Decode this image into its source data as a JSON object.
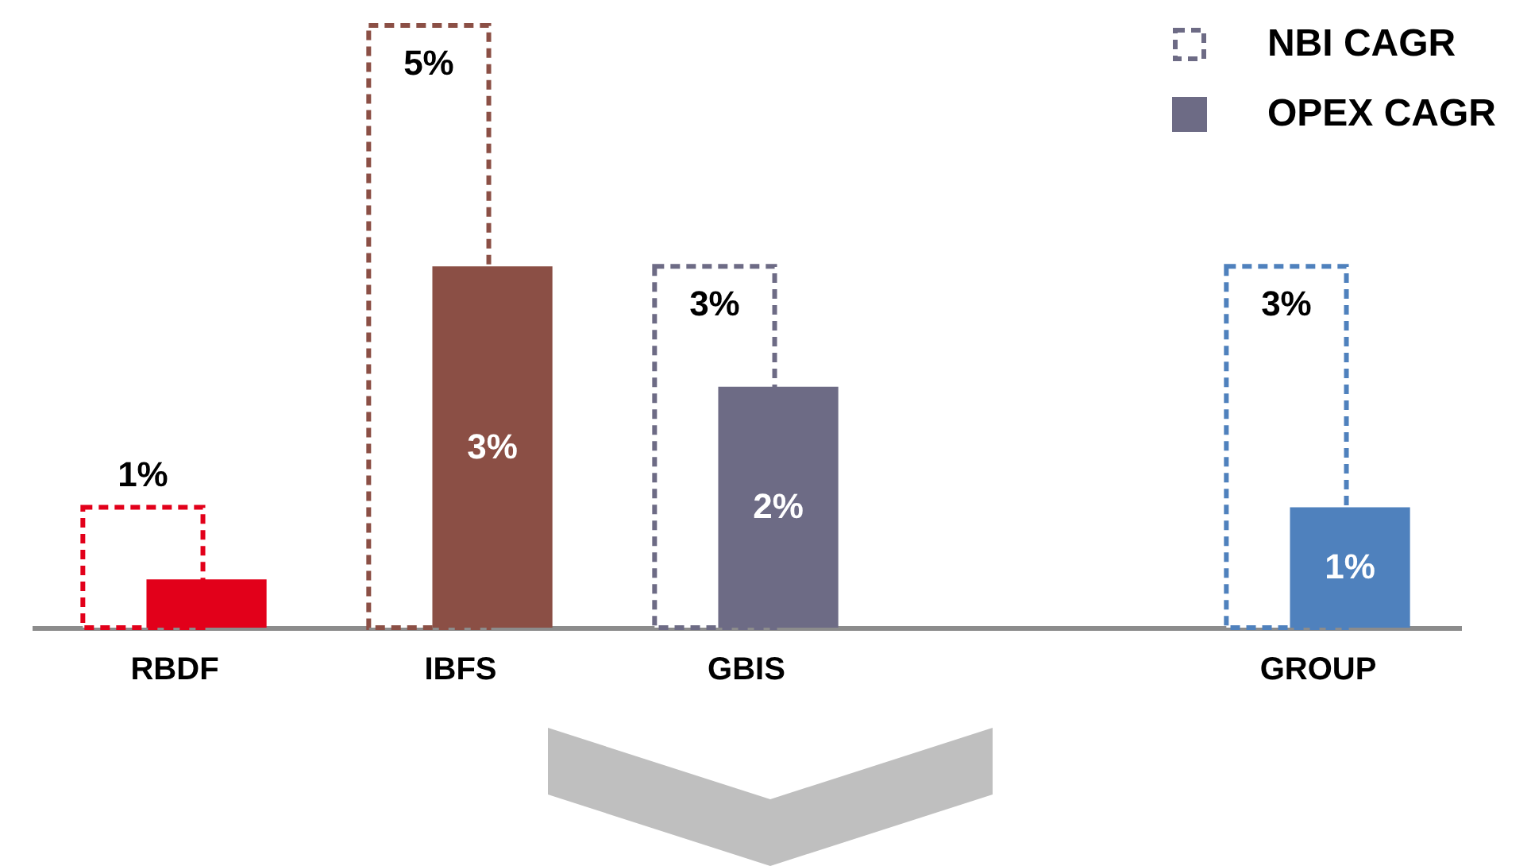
{
  "chart_data": {
    "type": "bar",
    "categories": [
      "RBDF",
      "IBFS",
      "GBIS",
      null,
      "GROUP"
    ],
    "legend": "top right",
    "series": [
      {
        "name": "NBI CAGR",
        "color": "#6d6b85",
        "line_style": "dashed",
        "colors": [
          "#e2001a",
          "#8b4f45",
          "#6d6b85",
          null,
          "#4f81bd"
        ],
        "values": [
          1,
          5,
          3,
          null,
          3
        ],
        "value_labels": [
          "1%",
          "5%",
          "3%",
          null,
          "3%"
        ]
      },
      {
        "name": "OPEX CAGR",
        "color": "#6d6b85",
        "line_style": "solid",
        "colors": [
          "#e2001a",
          "#8b4f45",
          "#6d6b85",
          null,
          "#4f81bd"
        ],
        "values": [
          0.4,
          3,
          2,
          null,
          1
        ],
        "value_labels": [
          null,
          "3%",
          "2%",
          null,
          "1%"
        ]
      }
    ]
  }
}
